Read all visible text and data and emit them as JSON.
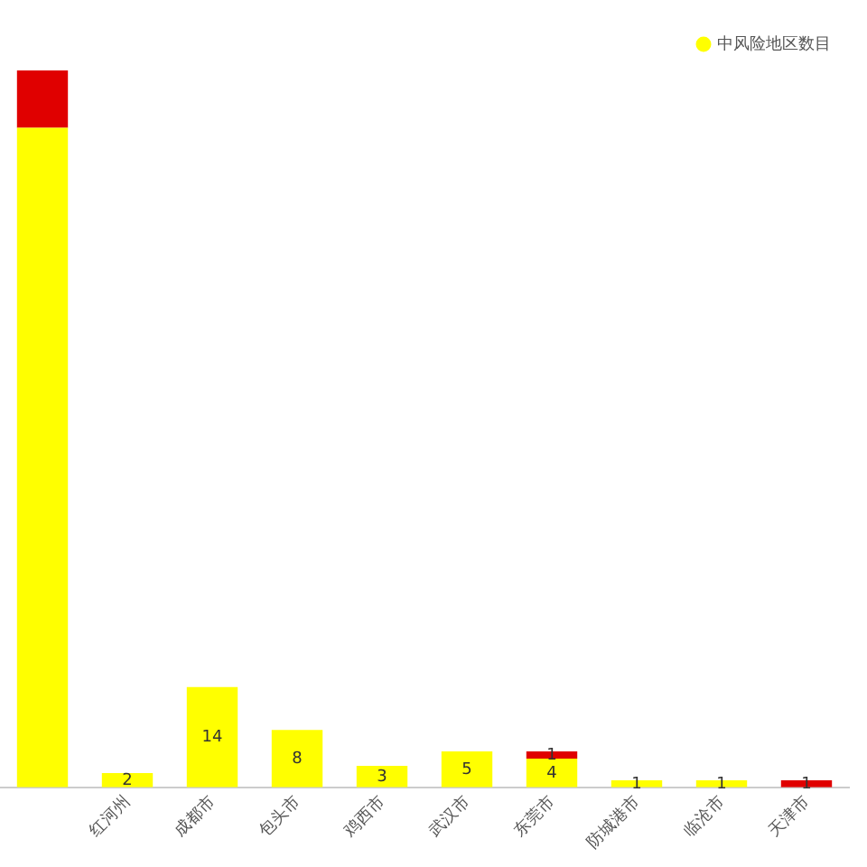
{
  "chart_data": {
    "type": "bar",
    "stacked": true,
    "legend": "top right",
    "grid": false,
    "tick_labels": "x",
    "categories": [
      null,
      "红河州",
      "成都市",
      "包头市",
      "鸡西市",
      "武汉市",
      "东莞市",
      "防城港市",
      "临沧市",
      "天津市"
    ],
    "series": [
      {
        "name": "中风险地区数目",
        "color": "#ffff00",
        "values": [
          92,
          2,
          14,
          8,
          3,
          5,
          4,
          1,
          1,
          null
        ],
        "value_labels": [
          null,
          "2",
          "14",
          "8",
          "3",
          "5",
          "4",
          "1",
          "1",
          null
        ]
      },
      {
        "color": "#e00000",
        "values": [
          8,
          null,
          null,
          null,
          null,
          null,
          1,
          null,
          null,
          1
        ],
        "value_labels": [
          null,
          null,
          null,
          null,
          null,
          null,
          "1",
          null,
          null,
          "1"
        ]
      }
    ]
  }
}
